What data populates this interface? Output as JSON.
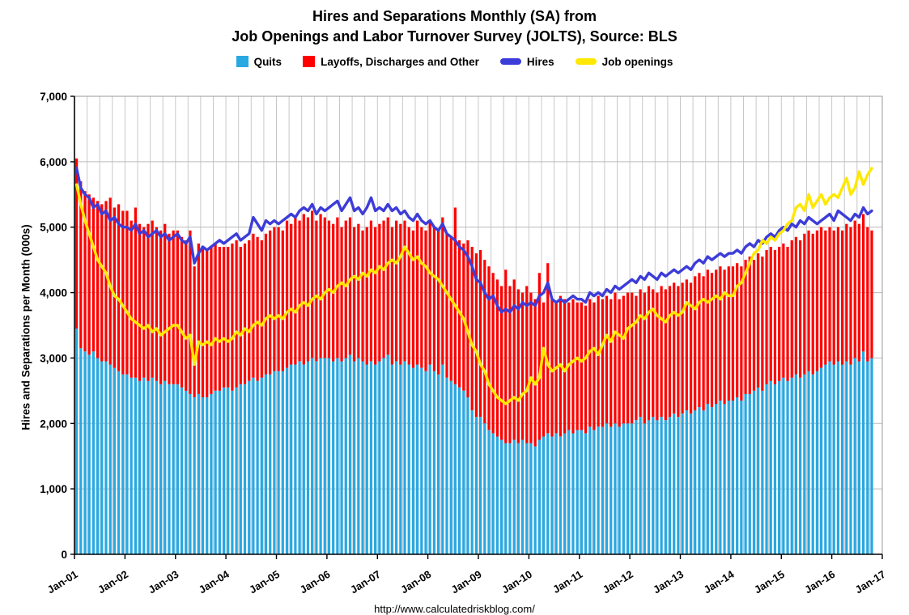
{
  "title": {
    "line1": "Hires and Separations Monthly (SA) from",
    "line2": "Job Openings and Labor Turnover Survey (JOLTS), Source: BLS"
  },
  "footer": {
    "url": "http://www.calculatedriskblog.com/"
  },
  "legend": {
    "items": [
      {
        "label": "Quits",
        "color": "#29a8e1",
        "type": "bar"
      },
      {
        "label": "Layoffs, Discharges and Other",
        "color": "#ff0000",
        "type": "bar"
      },
      {
        "label": "Hires",
        "color": "#3c3cd9",
        "type": "line"
      },
      {
        "label": "Job openings",
        "color": "#ffe800",
        "type": "line"
      }
    ]
  },
  "chart_data": {
    "type": "bar+line",
    "title": "Hires and Separations Monthly (SA) from Job Openings and Labor Turnover Survey (JOLTS), Source: BLS",
    "xlabel": "",
    "ylabel": "Hires and Separations per Month (000s)",
    "ylim": [
      0,
      7000
    ],
    "ytick_step": 1000,
    "ytick_labels": [
      "0",
      "1,000",
      "2,000",
      "3,000",
      "4,000",
      "5,000",
      "6,000",
      "7,000"
    ],
    "x_start": "Jan-2001",
    "x_end": "Oct-2016",
    "points": 190,
    "months_span": 192,
    "x_tick_labels": [
      "Jan-01",
      "Jan-02",
      "Jan-03",
      "Jan-04",
      "Jan-05",
      "Jan-06",
      "Jan-07",
      "Jan-08",
      "Jan-09",
      "Jan-10",
      "Jan-11",
      "Jan-12",
      "Jan-13",
      "Jan-14",
      "Jan-15",
      "Jan-16",
      "Jan-17"
    ],
    "grid_color": "#c8c8c8",
    "legend_position": "top",
    "stacked_bars": {
      "series": [
        {
          "name": "Quits",
          "color": "#29a8e1",
          "values": [
            3450,
            3150,
            3100,
            3050,
            3100,
            3000,
            2950,
            2950,
            2900,
            2850,
            2800,
            2750,
            2750,
            2700,
            2700,
            2650,
            2700,
            2650,
            2700,
            2650,
            2600,
            2650,
            2600,
            2600,
            2600,
            2550,
            2500,
            2450,
            2400,
            2450,
            2400,
            2400,
            2450,
            2500,
            2500,
            2550,
            2550,
            2500,
            2550,
            2600,
            2600,
            2650,
            2700,
            2650,
            2700,
            2750,
            2750,
            2800,
            2800,
            2800,
            2850,
            2900,
            2900,
            2950,
            2900,
            2950,
            3000,
            2950,
            3000,
            3000,
            3000,
            2950,
            3000,
            2950,
            3000,
            3050,
            2950,
            3000,
            2950,
            2900,
            2950,
            2900,
            2950,
            3000,
            3050,
            2900,
            2950,
            2900,
            2950,
            2900,
            2850,
            2900,
            2850,
            2800,
            2900,
            2800,
            2750,
            2900,
            2700,
            2650,
            2600,
            2550,
            2500,
            2400,
            2200,
            2100,
            2100,
            2000,
            1900,
            1850,
            1800,
            1750,
            1700,
            1700,
            1750,
            1700,
            1750,
            1700,
            1700,
            1650,
            1750,
            1800,
            1850,
            1800,
            1850,
            1800,
            1850,
            1900,
            1850,
            1900,
            1900,
            1850,
            1950,
            1900,
            1950,
            1950,
            2000,
            1950,
            2000,
            1950,
            2000,
            2000,
            2000,
            2050,
            2100,
            2000,
            2050,
            2100,
            2050,
            2100,
            2050,
            2100,
            2150,
            2100,
            2150,
            2200,
            2150,
            2200,
            2250,
            2200,
            2300,
            2250,
            2300,
            2350,
            2300,
            2350,
            2350,
            2400,
            2350,
            2450,
            2450,
            2500,
            2550,
            2500,
            2600,
            2650,
            2600,
            2650,
            2700,
            2650,
            2700,
            2750,
            2700,
            2750,
            2800,
            2750,
            2800,
            2850,
            2900,
            2950,
            2900,
            2950,
            2900,
            2950,
            2900,
            3000,
            2950,
            3100,
            2950,
            3000
          ]
        },
        {
          "name": "Layoffs, Discharges and Other",
          "color": "#ff0000",
          "values": [
            2600,
            2550,
            2450,
            2450,
            2350,
            2400,
            2400,
            2450,
            2550,
            2450,
            2550,
            2500,
            2500,
            2400,
            2600,
            2400,
            2300,
            2400,
            2400,
            2350,
            2350,
            2400,
            2300,
            2350,
            2350,
            2300,
            2300,
            2500,
            2000,
            2300,
            2300,
            2250,
            2250,
            2250,
            2200,
            2150,
            2150,
            2250,
            2250,
            2100,
            2150,
            2150,
            2200,
            2200,
            2100,
            2150,
            2200,
            2200,
            2200,
            2150,
            2250,
            2150,
            2250,
            2150,
            2300,
            2200,
            2250,
            2150,
            2200,
            2150,
            2100,
            2100,
            2150,
            2050,
            2100,
            2100,
            2050,
            2050,
            2000,
            2100,
            2150,
            2100,
            2100,
            2100,
            2100,
            2100,
            2150,
            2150,
            2150,
            2100,
            2100,
            2200,
            2150,
            2150,
            2200,
            2200,
            2200,
            2250,
            2200,
            2200,
            2700,
            2250,
            2250,
            2400,
            2500,
            2500,
            2550,
            2500,
            2500,
            2450,
            2400,
            2350,
            2650,
            2400,
            2450,
            2350,
            2250,
            2400,
            2300,
            2250,
            2550,
            2050,
            2600,
            2100,
            2000,
            2150,
            2050,
            1950,
            2050,
            1950,
            1950,
            1950,
            1950,
            1950,
            2000,
            1950,
            1950,
            1950,
            2000,
            1950,
            1950,
            2000,
            2000,
            1900,
            1950,
            2000,
            2050,
            1950,
            1950,
            2000,
            2000,
            2000,
            2000,
            2000,
            2000,
            2000,
            2000,
            2050,
            2050,
            2050,
            2050,
            2050,
            2050,
            2050,
            2050,
            2050,
            2050,
            2050,
            2050,
            2050,
            2100,
            2000,
            2050,
            2050,
            2050,
            2050,
            2050,
            2050,
            2050,
            2050,
            2100,
            2100,
            2100,
            2150,
            2150,
            2150,
            2150,
            2150,
            2050,
            2050,
            2050,
            2050,
            2050,
            2100,
            2100,
            2100,
            2100,
            2100,
            2050,
            1950
          ]
        }
      ]
    },
    "lines": [
      {
        "name": "Hires",
        "color": "#3c3cd9",
        "values": [
          5900,
          5600,
          5500,
          5450,
          5300,
          5350,
          5200,
          5250,
          5100,
          5150,
          5050,
          5000,
          5000,
          4950,
          5050,
          4900,
          4950,
          4850,
          4900,
          4950,
          4850,
          4900,
          4800,
          4850,
          4900,
          4800,
          4750,
          4850,
          4450,
          4600,
          4700,
          4650,
          4700,
          4750,
          4800,
          4750,
          4800,
          4850,
          4900,
          4800,
          4850,
          4900,
          5150,
          5050,
          4950,
          5100,
          5050,
          5100,
          5050,
          5100,
          5150,
          5200,
          5150,
          5250,
          5300,
          5250,
          5350,
          5200,
          5300,
          5250,
          5300,
          5350,
          5400,
          5250,
          5350,
          5450,
          5250,
          5300,
          5200,
          5300,
          5450,
          5250,
          5300,
          5250,
          5350,
          5250,
          5300,
          5200,
          5250,
          5150,
          5100,
          5200,
          5100,
          5050,
          5100,
          5000,
          4950,
          5050,
          4900,
          4850,
          4800,
          4700,
          4650,
          4550,
          4400,
          4200,
          4150,
          4000,
          3900,
          3950,
          3800,
          3700,
          3750,
          3700,
          3800,
          3750,
          3850,
          3800,
          3850,
          3800,
          3950,
          4000,
          4150,
          3900,
          3850,
          3900,
          3850,
          3900,
          3950,
          3900,
          3900,
          3850,
          4000,
          3950,
          4000,
          3950,
          4050,
          4000,
          4100,
          4050,
          4100,
          4150,
          4200,
          4150,
          4250,
          4200,
          4300,
          4250,
          4200,
          4300,
          4250,
          4300,
          4350,
          4300,
          4350,
          4400,
          4350,
          4450,
          4500,
          4450,
          4550,
          4500,
          4550,
          4600,
          4550,
          4600,
          4600,
          4650,
          4600,
          4700,
          4750,
          4700,
          4800,
          4750,
          4850,
          4900,
          4850,
          4950,
          5000,
          4950,
          5050,
          5000,
          5100,
          5050,
          5150,
          5100,
          5050,
          5100,
          5150,
          5200,
          5100,
          5250,
          5200,
          5150,
          5100,
          5200,
          5150,
          5300,
          5200,
          5250
        ]
      },
      {
        "name": "Job openings",
        "color": "#ffe800",
        "values": [
          5650,
          5350,
          5100,
          4900,
          4700,
          4500,
          4400,
          4300,
          4100,
          3950,
          3900,
          3800,
          3700,
          3600,
          3550,
          3500,
          3450,
          3500,
          3400,
          3450,
          3350,
          3400,
          3450,
          3500,
          3500,
          3400,
          3300,
          3350,
          2900,
          3250,
          3200,
          3250,
          3200,
          3300,
          3250,
          3300,
          3250,
          3300,
          3400,
          3350,
          3450,
          3400,
          3500,
          3550,
          3500,
          3600,
          3650,
          3600,
          3650,
          3600,
          3700,
          3750,
          3700,
          3800,
          3850,
          3800,
          3900,
          3950,
          3900,
          4000,
          4050,
          4000,
          4100,
          4150,
          4100,
          4200,
          4250,
          4200,
          4300,
          4250,
          4350,
          4300,
          4400,
          4350,
          4450,
          4500,
          4450,
          4550,
          4700,
          4600,
          4500,
          4550,
          4450,
          4400,
          4300,
          4250,
          4200,
          4100,
          4000,
          3900,
          3800,
          3700,
          3600,
          3400,
          3200,
          3100,
          2900,
          2800,
          2600,
          2500,
          2400,
          2350,
          2300,
          2350,
          2400,
          2350,
          2450,
          2500,
          2700,
          2600,
          2700,
          3150,
          2900,
          2800,
          2850,
          2900,
          2800,
          2900,
          2950,
          3000,
          2950,
          3000,
          3100,
          3150,
          3050,
          3200,
          3350,
          3250,
          3400,
          3350,
          3300,
          3450,
          3500,
          3550,
          3650,
          3600,
          3700,
          3750,
          3650,
          3600,
          3550,
          3650,
          3700,
          3650,
          3700,
          3850,
          3800,
          3750,
          3850,
          3900,
          3850,
          3900,
          3950,
          3900,
          4000,
          3950,
          3950,
          4100,
          4150,
          4300,
          4450,
          4600,
          4650,
          4800,
          4750,
          4850,
          4800,
          4900,
          4950,
          5050,
          5100,
          5300,
          5350,
          5250,
          5500,
          5300,
          5400,
          5500,
          5350,
          5450,
          5500,
          5450,
          5600,
          5750,
          5500,
          5600,
          5850,
          5650,
          5800,
          5900
        ]
      }
    ]
  }
}
